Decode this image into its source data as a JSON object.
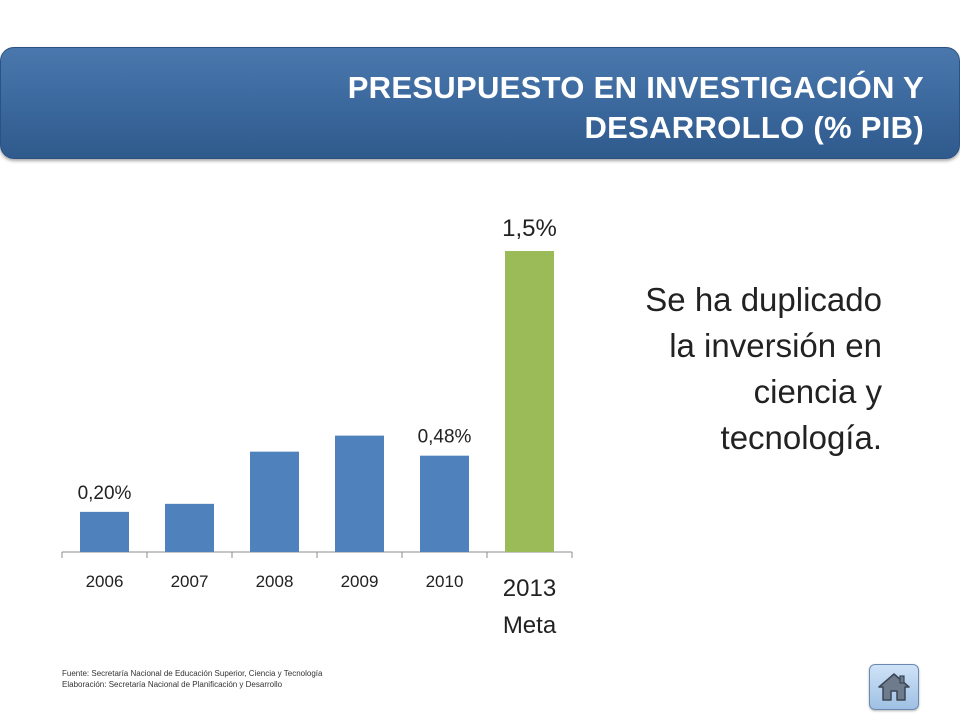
{
  "header": {
    "title": "PRESUPUESTO EN  INVESTIGACIÓN Y\nDESARROLLO  (% PIB)"
  },
  "side_note": "Se ha duplicado\nla inversión en\nciencia y\ntecnología.",
  "footer": {
    "source_text": "Fuente: Secretaría Nacional de Educación Superior, Ciencia y Tecnología\nElaboración: Secretaría Nacional de Planificación y Desarrollo"
  },
  "home_icon": "home-icon",
  "colors": {
    "banner": "#3a679c",
    "bar": "#4f81bd",
    "goal_bar": "#9bbb59"
  },
  "chart_data": {
    "type": "bar",
    "categories": [
      "2006",
      "2007",
      "2008",
      "2009",
      "2010",
      "2013"
    ],
    "category_sublabels": [
      "",
      "",
      "",
      "",
      "",
      "Meta"
    ],
    "values": [
      0.2,
      0.24,
      0.5,
      0.58,
      0.48,
      1.5
    ],
    "data_labels": [
      "0,20%",
      "",
      "",
      "",
      "0,48%",
      "1,5%"
    ],
    "highlight_index": 5,
    "title": "",
    "xlabel": "",
    "ylabel": "",
    "ylim": [
      0,
      1.5
    ],
    "grid": false,
    "legend": "none"
  }
}
